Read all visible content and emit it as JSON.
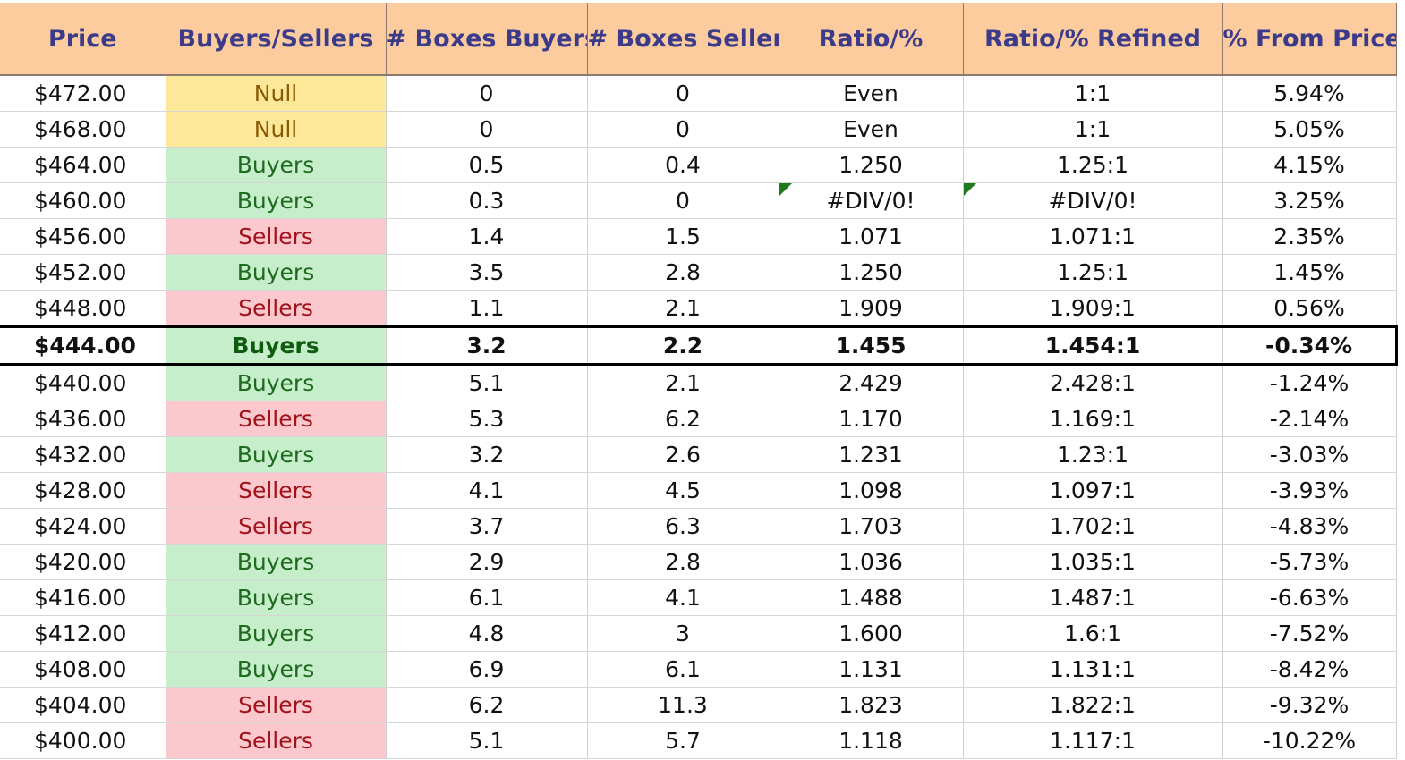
{
  "headers": {
    "price": "Price",
    "buyers_sellers": "Buyers/Sellers",
    "boxes_buyers": "# Boxes Buyers",
    "boxes_sellers": "# Boxes Sellers",
    "ratio": "Ratio/%",
    "ratio_refined": "Ratio/% Refined",
    "pct_from_price": "% From Price"
  },
  "colors": {
    "header_bg": "#fccc9f",
    "header_text": "#3b3b8a",
    "null_bg": "#fde89a",
    "buyers_bg": "#c6eecb",
    "sellers_bg": "#fbc8cd",
    "error_flag": "#1f7a1f"
  },
  "current_price_row_index": 7,
  "rows": [
    {
      "price": "$472.00",
      "bs": "Null",
      "box_buyers": "0",
      "box_sellers": "0",
      "ratio": "Even",
      "refined": "1:1",
      "pct": "5.94%"
    },
    {
      "price": "$468.00",
      "bs": "Null",
      "box_buyers": "0",
      "box_sellers": "0",
      "ratio": "Even",
      "refined": "1:1",
      "pct": "5.05%"
    },
    {
      "price": "$464.00",
      "bs": "Buyers",
      "box_buyers": "0.5",
      "box_sellers": "0.4",
      "ratio": "1.250",
      "refined": "1.25:1",
      "pct": "4.15%"
    },
    {
      "price": "$460.00",
      "bs": "Buyers",
      "box_buyers": "0.3",
      "box_sellers": "0",
      "ratio": "#DIV/0!",
      "refined": "#DIV/0!",
      "pct": "3.25%"
    },
    {
      "price": "$456.00",
      "bs": "Sellers",
      "box_buyers": "1.4",
      "box_sellers": "1.5",
      "ratio": "1.071",
      "refined": "1.071:1",
      "pct": "2.35%"
    },
    {
      "price": "$452.00",
      "bs": "Buyers",
      "box_buyers": "3.5",
      "box_sellers": "2.8",
      "ratio": "1.250",
      "refined": "1.25:1",
      "pct": "1.45%"
    },
    {
      "price": "$448.00",
      "bs": "Sellers",
      "box_buyers": "1.1",
      "box_sellers": "2.1",
      "ratio": "1.909",
      "refined": "1.909:1",
      "pct": "0.56%"
    },
    {
      "price": "$444.00",
      "bs": "Buyers",
      "box_buyers": "3.2",
      "box_sellers": "2.2",
      "ratio": "1.455",
      "refined": "1.454:1",
      "pct": "-0.34%"
    },
    {
      "price": "$440.00",
      "bs": "Buyers",
      "box_buyers": "5.1",
      "box_sellers": "2.1",
      "ratio": "2.429",
      "refined": "2.428:1",
      "pct": "-1.24%"
    },
    {
      "price": "$436.00",
      "bs": "Sellers",
      "box_buyers": "5.3",
      "box_sellers": "6.2",
      "ratio": "1.170",
      "refined": "1.169:1",
      "pct": "-2.14%"
    },
    {
      "price": "$432.00",
      "bs": "Buyers",
      "box_buyers": "3.2",
      "box_sellers": "2.6",
      "ratio": "1.231",
      "refined": "1.23:1",
      "pct": "-3.03%"
    },
    {
      "price": "$428.00",
      "bs": "Sellers",
      "box_buyers": "4.1",
      "box_sellers": "4.5",
      "ratio": "1.098",
      "refined": "1.097:1",
      "pct": "-3.93%"
    },
    {
      "price": "$424.00",
      "bs": "Sellers",
      "box_buyers": "3.7",
      "box_sellers": "6.3",
      "ratio": "1.703",
      "refined": "1.702:1",
      "pct": "-4.83%"
    },
    {
      "price": "$420.00",
      "bs": "Buyers",
      "box_buyers": "2.9",
      "box_sellers": "2.8",
      "ratio": "1.036",
      "refined": "1.035:1",
      "pct": "-5.73%"
    },
    {
      "price": "$416.00",
      "bs": "Buyers",
      "box_buyers": "6.1",
      "box_sellers": "4.1",
      "ratio": "1.488",
      "refined": "1.487:1",
      "pct": "-6.63%"
    },
    {
      "price": "$412.00",
      "bs": "Buyers",
      "box_buyers": "4.8",
      "box_sellers": "3",
      "ratio": "1.600",
      "refined": "1.6:1",
      "pct": "-7.52%"
    },
    {
      "price": "$408.00",
      "bs": "Buyers",
      "box_buyers": "6.9",
      "box_sellers": "6.1",
      "ratio": "1.131",
      "refined": "1.131:1",
      "pct": "-8.42%"
    },
    {
      "price": "$404.00",
      "bs": "Sellers",
      "box_buyers": "6.2",
      "box_sellers": "11.3",
      "ratio": "1.823",
      "refined": "1.822:1",
      "pct": "-9.32%"
    },
    {
      "price": "$400.00",
      "bs": "Sellers",
      "box_buyers": "5.1",
      "box_sellers": "5.7",
      "ratio": "1.118",
      "refined": "1.117:1",
      "pct": "-10.22%"
    }
  ]
}
